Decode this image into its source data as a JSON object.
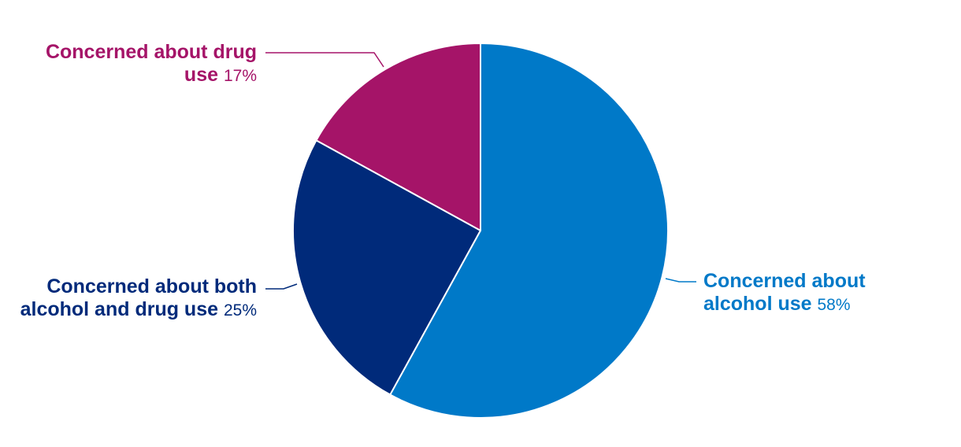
{
  "chart_data": {
    "type": "pie",
    "categories": [
      "Concerned about alcohol use",
      "Concerned about both alcohol and drug use",
      "Concerned about drug use"
    ],
    "values": [
      58,
      25,
      17
    ],
    "value_labels": [
      "58%",
      "25%",
      "17%"
    ],
    "colors": [
      "#0079c8",
      "#002a7a",
      "#a51468"
    ]
  }
}
